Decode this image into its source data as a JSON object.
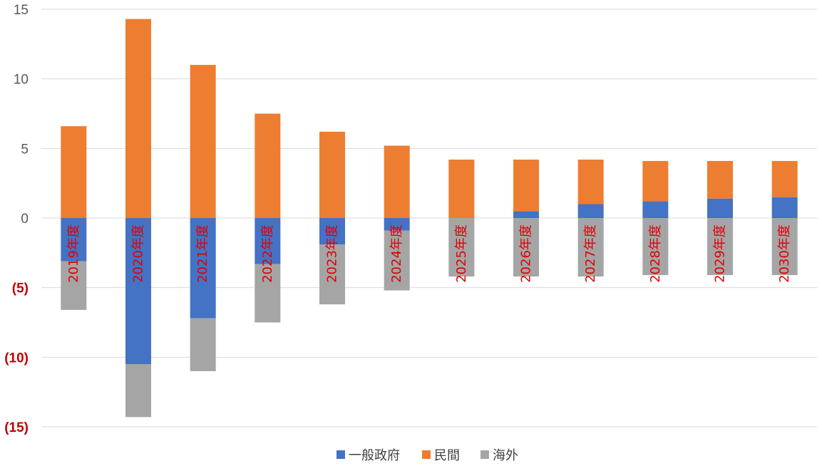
{
  "chart_data": {
    "type": "bar",
    "stacked": true,
    "title": "",
    "xlabel": "",
    "ylabel": "",
    "ylim": [
      -15,
      15
    ],
    "grid": true,
    "legend_position": "bottom",
    "yticks": [
      {
        "value": 15,
        "label": "15",
        "color": "#595959"
      },
      {
        "value": 10,
        "label": "10",
        "color": "#595959"
      },
      {
        "value": 5,
        "label": "5",
        "color": "#595959"
      },
      {
        "value": 0,
        "label": "0",
        "color": "#595959"
      },
      {
        "value": -5,
        "label": "(5)",
        "color": "#c00000"
      },
      {
        "value": -10,
        "label": "(10)",
        "color": "#c00000"
      },
      {
        "value": -15,
        "label": "(15)",
        "color": "#c00000"
      }
    ],
    "categories": [
      "2019年度",
      "2020年度",
      "2021年度",
      "2022年度",
      "2023年度",
      "2024年度",
      "2025年度",
      "2026年度",
      "2027年度",
      "2028年度",
      "2029年度",
      "2030年度"
    ],
    "category_label_color": "#e00000",
    "series": [
      {
        "name": "一般政府",
        "color": "#4472c4",
        "values": [
          -3.1,
          -10.5,
          -7.2,
          -3.3,
          -1.9,
          -0.9,
          0.0,
          0.5,
          1.0,
          1.2,
          1.4,
          1.5
        ]
      },
      {
        "name": "民間",
        "color": "#ed7d31",
        "values": [
          6.6,
          14.3,
          11.0,
          7.5,
          6.2,
          5.2,
          4.2,
          3.7,
          3.2,
          2.9,
          2.7,
          2.6
        ]
      },
      {
        "name": "海外",
        "color": "#a5a5a5",
        "values": [
          -3.5,
          -3.8,
          -3.8,
          -4.2,
          -4.3,
          -4.3,
          -4.2,
          -4.2,
          -4.2,
          -4.1,
          -4.1,
          -4.1
        ]
      }
    ]
  }
}
